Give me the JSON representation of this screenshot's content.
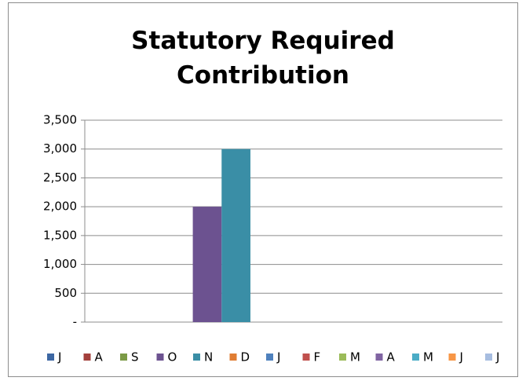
{
  "chart_data": {
    "type": "bar",
    "title": "Statutory Required Contribution",
    "series": [
      {
        "name": "J",
        "color": "#3d67a3",
        "values": [
          0
        ]
      },
      {
        "name": "A",
        "color": "#a3403c",
        "values": [
          0
        ]
      },
      {
        "name": "S",
        "color": "#7b9a46",
        "values": [
          0
        ]
      },
      {
        "name": "O",
        "color": "#6c5290",
        "values": [
          2000
        ]
      },
      {
        "name": "N",
        "color": "#3a8ea6",
        "values": [
          3000
        ]
      },
      {
        "name": "D",
        "color": "#e07d33",
        "values": [
          0
        ]
      },
      {
        "name": "J",
        "color": "#4f81bd",
        "values": [
          0
        ]
      },
      {
        "name": "F",
        "color": "#c0504d",
        "values": [
          0
        ]
      },
      {
        "name": "M",
        "color": "#9bbb59",
        "values": [
          0
        ]
      },
      {
        "name": "A",
        "color": "#8064a2",
        "values": [
          0
        ]
      },
      {
        "name": "M",
        "color": "#4bacc6",
        "values": [
          0
        ]
      },
      {
        "name": "J",
        "color": "#f79646",
        "values": [
          0
        ]
      },
      {
        "name": "J",
        "color": "#a7bde0",
        "values": [
          0
        ]
      }
    ],
    "ylim": [
      0,
      3500
    ],
    "yticks": [
      {
        "value": 0,
        "label": "-"
      },
      500,
      {
        "value": 1000,
        "label": "1,000"
      },
      {
        "value": 1500,
        "label": "1,500"
      },
      {
        "value": 2000,
        "label": "2,000"
      },
      {
        "value": 2500,
        "label": "2,500"
      },
      {
        "value": 3000,
        "label": "3,000"
      },
      {
        "value": 3500,
        "label": "3,500"
      }
    ],
    "grid": true,
    "legend": "bottom"
  }
}
